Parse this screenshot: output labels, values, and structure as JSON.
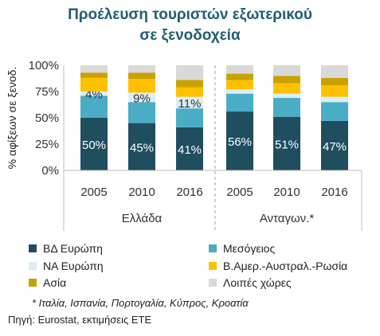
{
  "title": {
    "line1": "Προέλευση τουριστών εξωτερικού",
    "line2": "σε ξενοδοχεία"
  },
  "chart_data": {
    "type": "bar",
    "stacked": true,
    "ylabel": "% αφίξεων σε ξενοδ.",
    "ylim": [
      0,
      100
    ],
    "yticks": [
      "0%",
      "25%",
      "50%",
      "75%",
      "100%"
    ],
    "groups": [
      {
        "label": "Ελλάδα",
        "categories": [
          "2005",
          "2010",
          "2016"
        ]
      },
      {
        "label": "Ανταγων.*",
        "categories": [
          "2005",
          "2010",
          "2016"
        ]
      }
    ],
    "series": [
      {
        "name": "ΒΔ Ευρώπη",
        "color": "#1f4e5f",
        "values": [
          50,
          45,
          41,
          56,
          51,
          47
        ],
        "labels": [
          "50%",
          "45%",
          "41%",
          "56%",
          "51%",
          "47%"
        ]
      },
      {
        "name": "Μεσόγειος",
        "color": "#4bacc6",
        "values": [
          21,
          20,
          18,
          17,
          18,
          18
        ],
        "labels": []
      },
      {
        "name": "ΝΑ Ευρώπη",
        "color": "#daeef3",
        "values": [
          4,
          9,
          11,
          4,
          4,
          5
        ],
        "labels": [
          "4%",
          "9%",
          "11%",
          "",
          "",
          ""
        ]
      },
      {
        "name": "Β.Αμερ.-Αυστραλ.-Ρωσία",
        "color": "#ffc000",
        "values": [
          13,
          13,
          9,
          9,
          10,
          11
        ],
        "labels": []
      },
      {
        "name": "Ασία",
        "color": "#c9a100",
        "values": [
          5,
          6,
          7,
          6,
          7,
          7
        ],
        "labels": []
      },
      {
        "name": "Λοιπές χώρες",
        "color": "#d9d9d9",
        "values": [
          7,
          7,
          14,
          8,
          10,
          12
        ],
        "labels": []
      }
    ],
    "legend_position": "bottom"
  },
  "note": "*  Ιταλία, Ισπανία, Πορτογαλία, Κύπρος, Κροατία",
  "source": "Πηγή: Eurostat, εκτιμήσεις ΕΤΕ"
}
